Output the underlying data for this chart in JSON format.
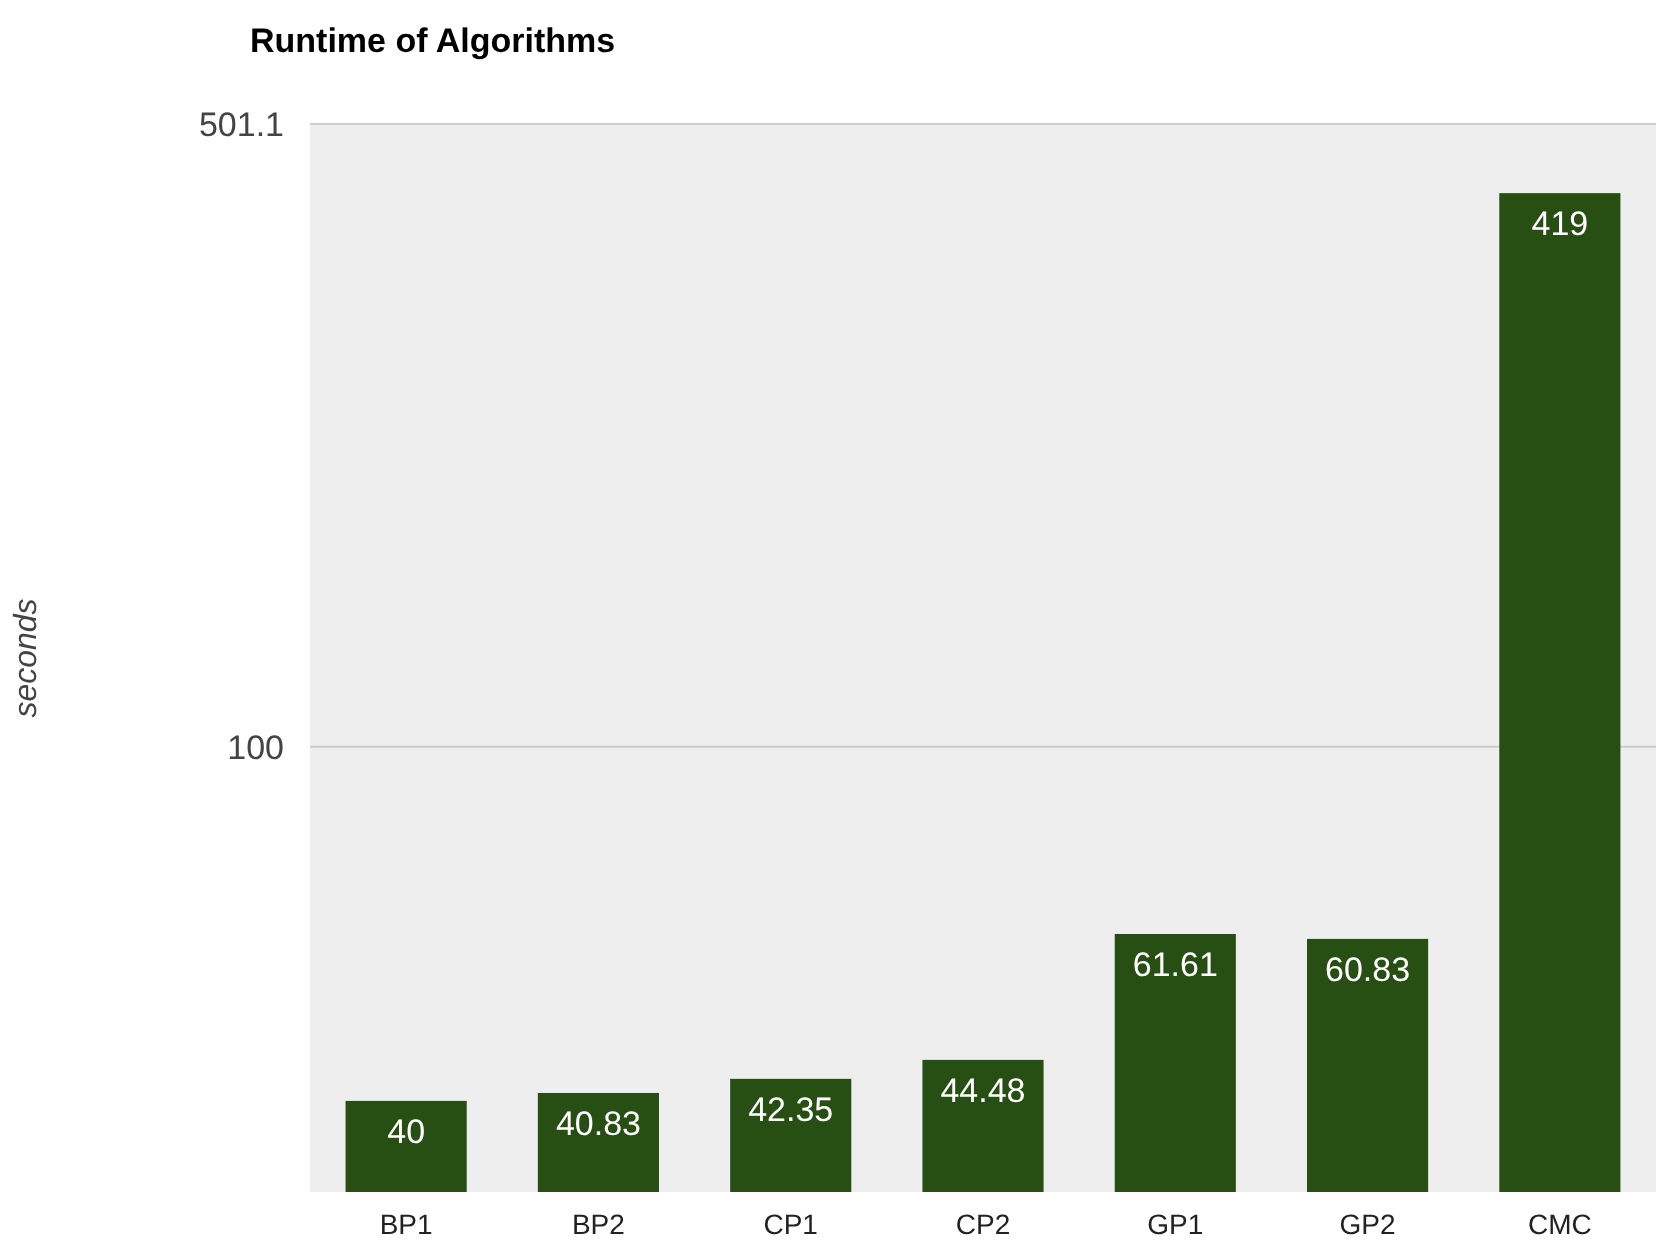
{
  "chart_data": {
    "type": "bar",
    "title": "Runtime of Algorithms",
    "ylabel": "seconds",
    "categories": [
      "BP1",
      "BP2",
      "CP1",
      "CP2",
      "GP1",
      "GP2",
      "CMC"
    ],
    "values": [
      40,
      40.83,
      42.35,
      44.48,
      61.61,
      60.83,
      419
    ],
    "color": "#274e13",
    "log": true,
    "ylim": [
      31.6,
      501.1
    ],
    "yticks": [
      100,
      501.1
    ],
    "grid": "y",
    "data_labels": true
  }
}
